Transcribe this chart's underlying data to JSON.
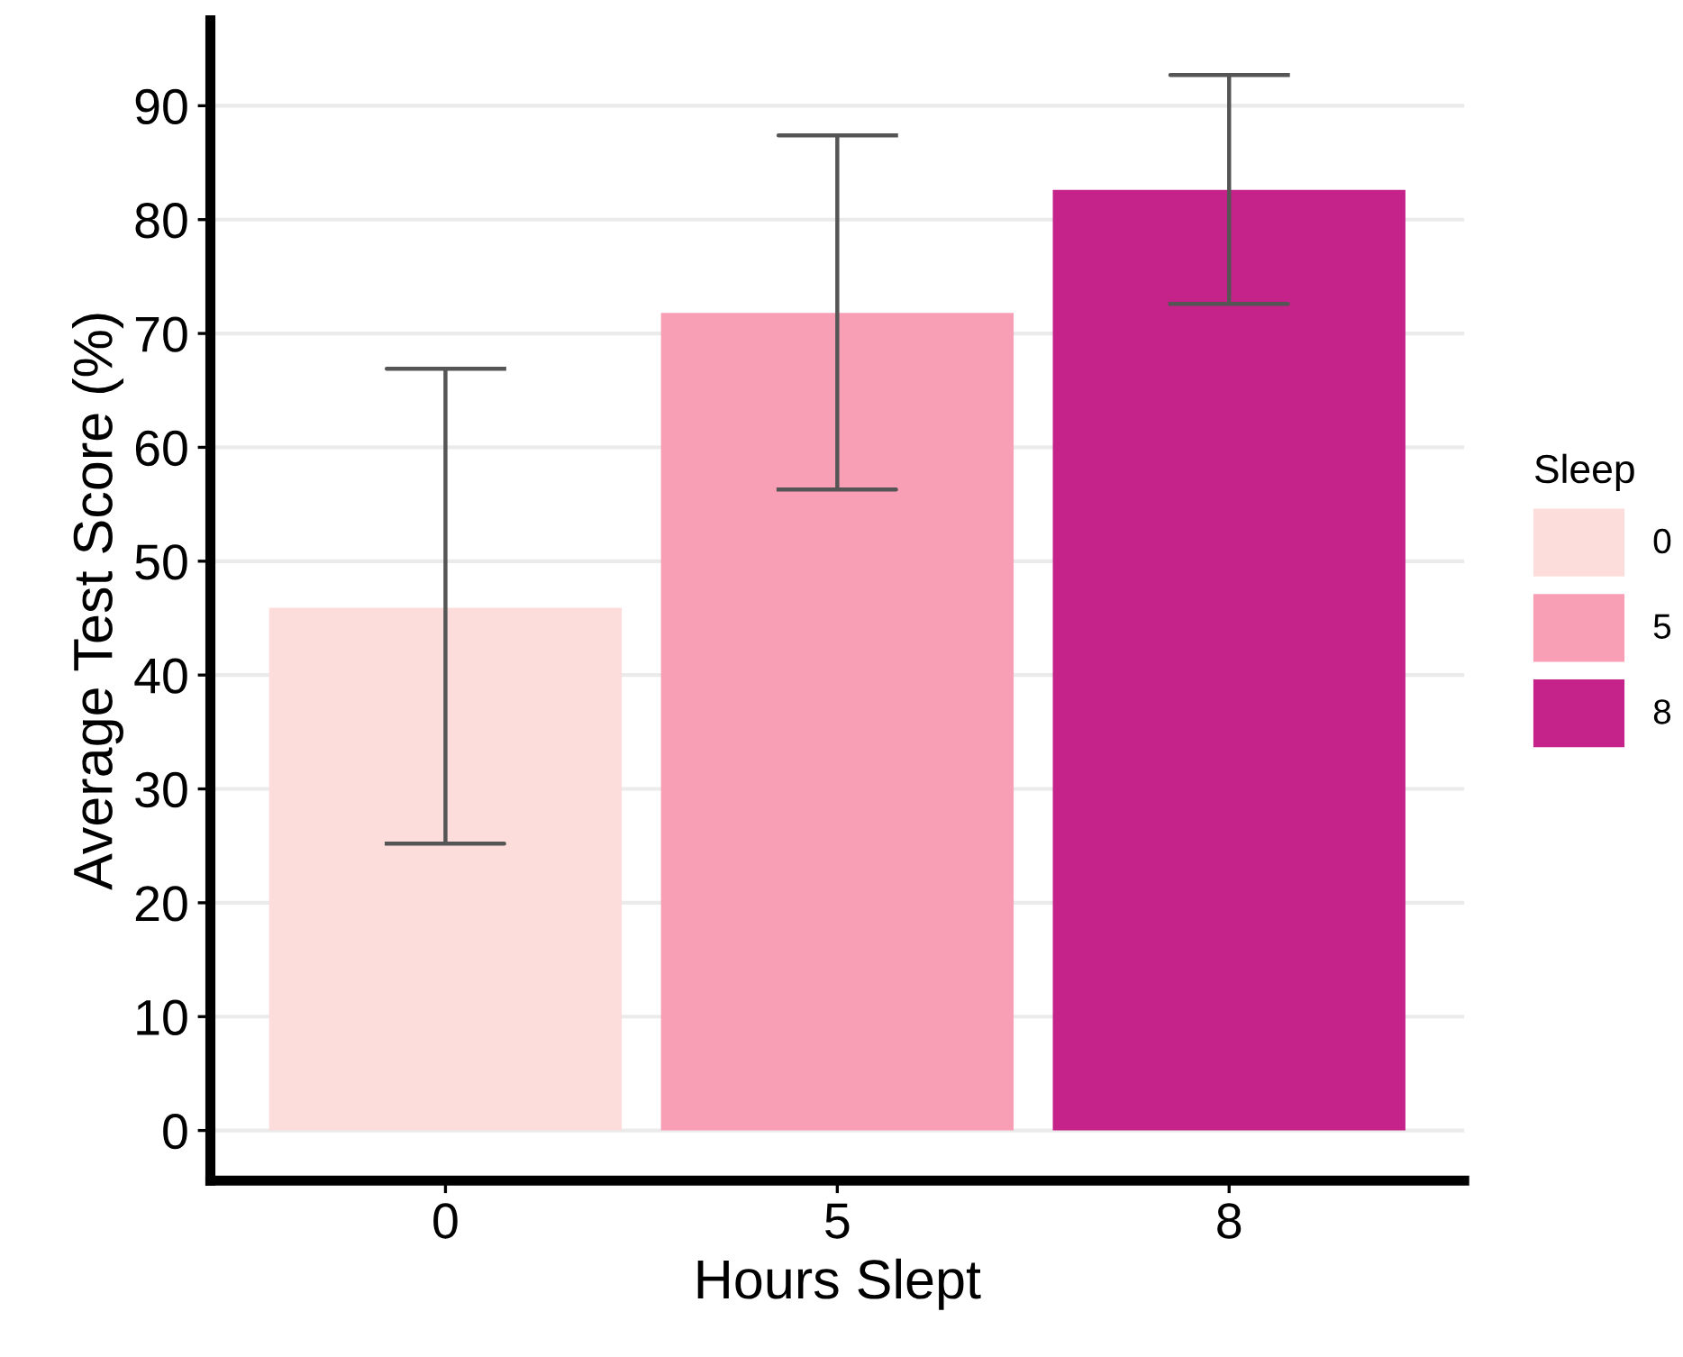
{
  "chart_data": {
    "type": "bar",
    "xlabel": "Hours Slept",
    "ylabel": "Average Test Score (%)",
    "legend_title": "Sleep",
    "categories": [
      "0",
      "5",
      "8"
    ],
    "series": [
      {
        "name": "0",
        "color": "#fcdddb",
        "values": [
          45.9,
          null,
          null
        ],
        "errors": [
          [
            25.2,
            66.9
          ],
          null,
          null
        ]
      },
      {
        "name": "5",
        "color": "#f99fb5",
        "values": [
          null,
          71.8,
          null
        ],
        "errors": [
          null,
          [
            56.3,
            87.4
          ],
          null
        ]
      },
      {
        "name": "8",
        "color": "#c6238a",
        "values": [
          null,
          null,
          82.6
        ],
        "errors": [
          null,
          null,
          [
            72.6,
            92.7
          ]
        ]
      }
    ],
    "ylim": [
      -4.4,
      97.5
    ],
    "yticks": [
      0,
      10,
      20,
      30,
      40,
      50,
      60,
      70,
      80,
      90
    ],
    "grid": "y",
    "legend": "right"
  }
}
